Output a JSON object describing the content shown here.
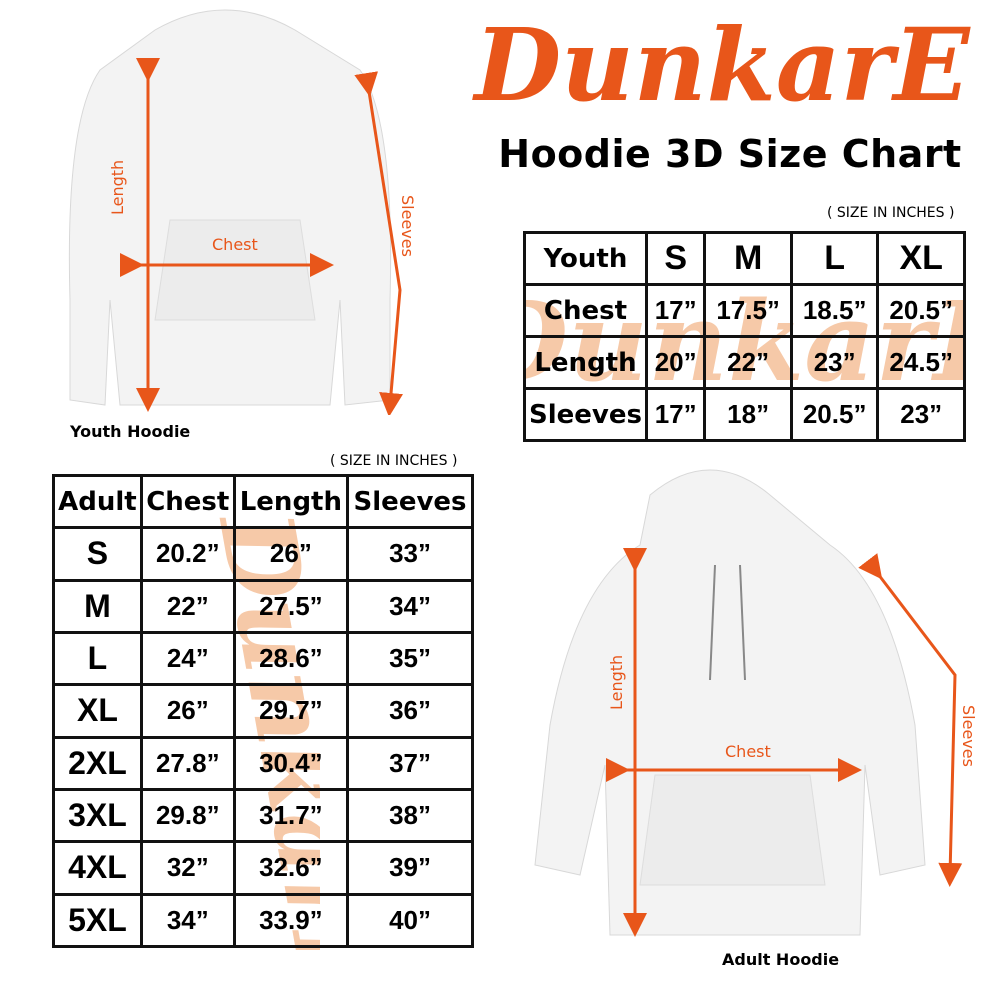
{
  "brand": {
    "logo_text": "DunkarE",
    "accent_color": "#e8561a",
    "watermark_color": "#f6c9a8"
  },
  "title": "Hoodie 3D Size Chart",
  "youth_chart": {
    "note": "( SIZE IN INCHES )",
    "headers": [
      "Youth",
      "S",
      "M",
      "L",
      "XL"
    ],
    "rows": [
      {
        "label": "Chest",
        "values": [
          "17”",
          "17.5”",
          "18.5”",
          "20.5”"
        ]
      },
      {
        "label": "Length",
        "values": [
          "20”",
          "22”",
          "23”",
          "24.5”"
        ]
      },
      {
        "label": "Sleeves",
        "values": [
          "17”",
          "18”",
          "20.5”",
          "23”"
        ]
      }
    ]
  },
  "adult_chart": {
    "note": "( SIZE IN INCHES )",
    "headers": [
      "Adult",
      "Chest",
      "Length",
      "Sleeves"
    ],
    "rows": [
      {
        "size": "S",
        "values": [
          "20.2”",
          "26”",
          "33”"
        ]
      },
      {
        "size": "M",
        "values": [
          "22”",
          "27.5”",
          "34”"
        ]
      },
      {
        "size": "L",
        "values": [
          "24”",
          "28.6”",
          "35”"
        ]
      },
      {
        "size": "XL",
        "values": [
          "26”",
          "29.7”",
          "36”"
        ]
      },
      {
        "size": "2XL",
        "values": [
          "27.8”",
          "30.4”",
          "37”"
        ]
      },
      {
        "size": "3XL",
        "values": [
          "29.8”",
          "31.7”",
          "38”"
        ]
      },
      {
        "size": "4XL",
        "values": [
          "32”",
          "32.6”",
          "39”"
        ]
      },
      {
        "size": "5XL",
        "values": [
          "34”",
          "33.9”",
          "40”"
        ]
      }
    ]
  },
  "youth_hoodie": {
    "caption": "Youth Hoodie",
    "labels": {
      "length": "Length",
      "chest": "Chest",
      "sleeves": "Sleeves"
    }
  },
  "adult_hoodie": {
    "caption": "Adult Hoodie",
    "labels": {
      "length": "Length",
      "chest": "Chest",
      "sleeves": "Sleeves"
    }
  }
}
